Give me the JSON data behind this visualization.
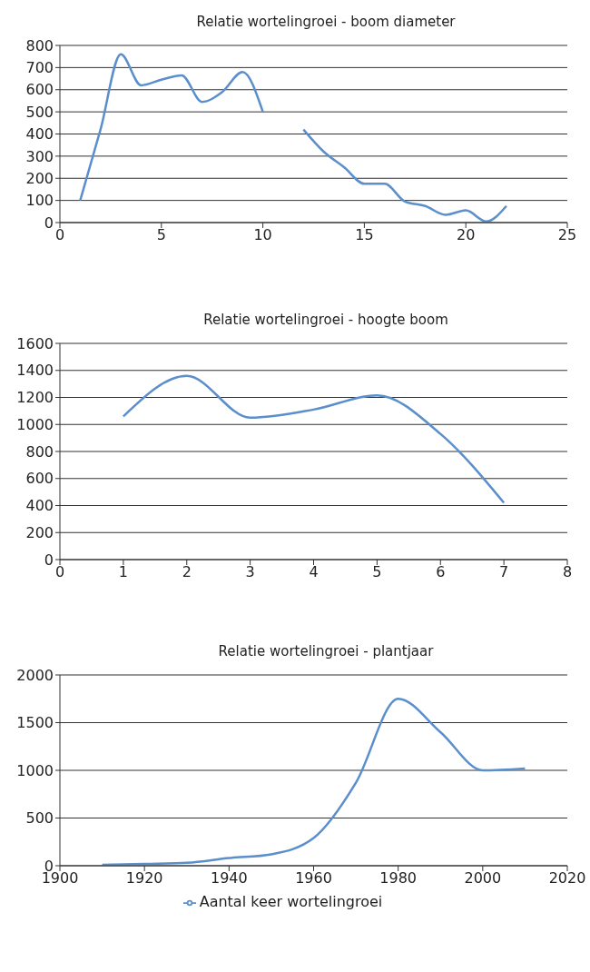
{
  "chart_data": [
    {
      "type": "line",
      "title": "Relatie wortelingroei - boom diameter",
      "x": [
        1,
        2,
        3,
        4,
        5,
        6,
        7,
        8,
        9,
        10,
        11,
        12,
        13,
        14,
        15,
        16,
        17,
        18,
        19,
        20,
        21,
        22
      ],
      "series": [
        {
          "color": "#5b8fcb",
          "values": [
            100,
            420,
            760,
            620,
            645,
            665,
            545,
            590,
            680,
            500,
            null,
            420,
            320,
            250,
            175,
            175,
            95,
            75,
            35,
            55,
            5,
            75
          ]
        }
      ],
      "xlim": [
        0,
        25
      ],
      "xticks": [
        0,
        5,
        10,
        15,
        20,
        25
      ],
      "ylim": [
        0,
        800
      ],
      "yticks": [
        0,
        100,
        200,
        300,
        400,
        500,
        600,
        700,
        800
      ],
      "grid": "y",
      "legend": false,
      "marker": "none",
      "line_style": "solid"
    },
    {
      "type": "line",
      "title": "Relatie wortelingroei - hoogte boom",
      "x": [
        1,
        2,
        3,
        4,
        5,
        6,
        7
      ],
      "series": [
        {
          "color": "#5b8fcb",
          "values": [
            1060,
            1360,
            1050,
            1110,
            1215,
            930,
            420
          ]
        }
      ],
      "xlim": [
        0,
        8
      ],
      "xticks": [
        0,
        1,
        2,
        3,
        4,
        5,
        6,
        7,
        8
      ],
      "ylim": [
        0,
        1600
      ],
      "yticks": [
        0,
        200,
        400,
        600,
        800,
        1000,
        1200,
        1400,
        1600
      ],
      "grid": "y",
      "legend": false,
      "marker": "none",
      "line_style": "solid"
    },
    {
      "type": "line",
      "title": "Relatie wortelingroei - plantjaar",
      "x": [
        1910,
        1920,
        1930,
        1940,
        1950,
        1960,
        1970,
        1980,
        1990,
        2000,
        2010
      ],
      "series": [
        {
          "name": "Aantal keer wortelingroei",
          "color": "#5b8fcb",
          "values": [
            10,
            20,
            30,
            80,
            120,
            290,
            870,
            1750,
            1400,
            1000,
            1020
          ]
        }
      ],
      "xlim": [
        1900,
        2020
      ],
      "xticks": [
        1900,
        1920,
        1940,
        1960,
        1980,
        2000,
        2020
      ],
      "ylim": [
        0,
        2000
      ],
      "yticks": [
        0,
        500,
        1000,
        1500,
        2000
      ],
      "grid": "y",
      "legend": "bottom",
      "marker": "none",
      "line_style": "solid"
    }
  ]
}
